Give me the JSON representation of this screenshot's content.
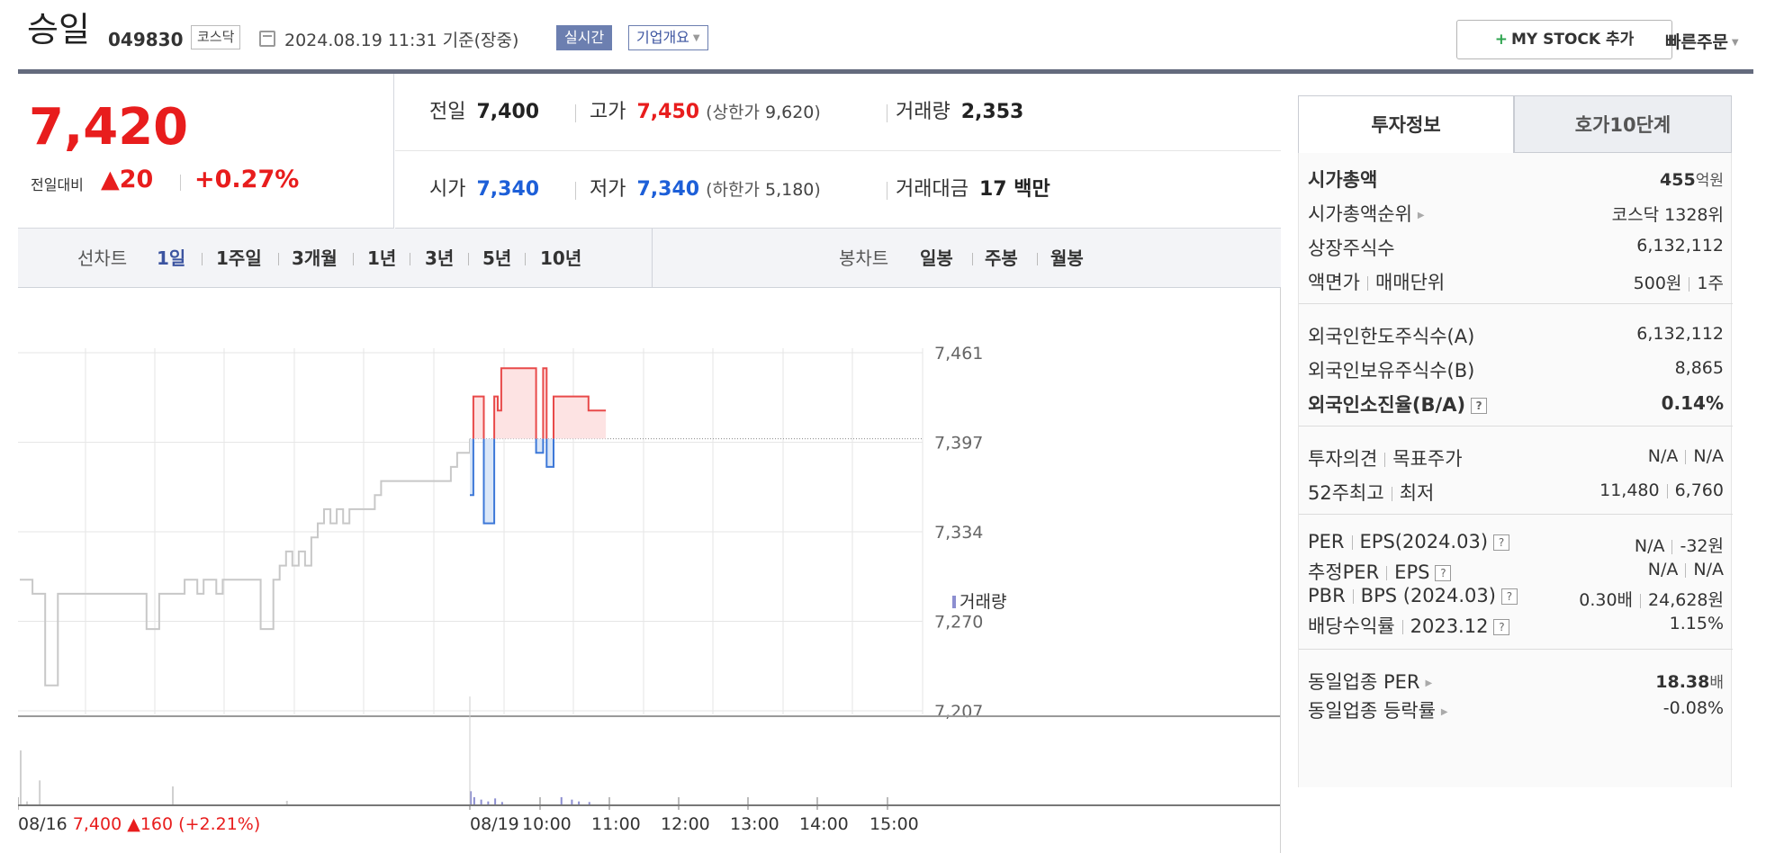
{
  "header": {
    "stock_name": "승일",
    "stock_code": "049830",
    "market": "코스닥",
    "datetime": "2024.08.19 11:31  기준(장중)",
    "realtime_label": "실시간",
    "company_overview_label": "기업개요",
    "my_stock_plus": "+",
    "my_stock_label": "MY STOCK 추가",
    "quick_order_label": "빠른주문"
  },
  "price": {
    "current": "7,420",
    "change_label": "전일대비",
    "change": "▲20",
    "change_pct": "+0.27%"
  },
  "summary": {
    "prev_close_label": "전일",
    "prev_close": "7,400",
    "high_label": "고가",
    "high": "7,450",
    "upper_limit_label": "(상한가",
    "upper_limit": "9,620",
    "upper_close": ")",
    "volume_label": "거래량",
    "volume": "2,353",
    "open_label": "시가",
    "open": "7,340",
    "low_label": "저가",
    "low": "7,340",
    "lower_limit_label": "(하한가",
    "lower_limit": "5,180",
    "lower_close": ")",
    "trade_value_label": "거래대금",
    "trade_value": "17 백만"
  },
  "period_bar": {
    "line_chart_label": "선차트",
    "line_periods": [
      "1일",
      "1주일",
      "3개월",
      "1년",
      "3년",
      "5년",
      "10년"
    ],
    "active_period": "1일",
    "candle_chart_label": "봉차트",
    "candle_periods": [
      "일봉",
      "주봉",
      "월봉"
    ]
  },
  "chart_data": {
    "type": "line",
    "y_ticks": [
      "7,461",
      "7,397",
      "7,334",
      "7,270",
      "7,207"
    ],
    "ylim": [
      7207,
      7461
    ],
    "reference_price": 7400,
    "x_ticks": [
      "08/19",
      "10:00",
      "11:00",
      "12:00",
      "13:00",
      "14:00",
      "15:00"
    ],
    "volume_legend": "거래량",
    "prev_day_label": "08/16",
    "prev_day_close": "7,400",
    "prev_day_change": "▲160",
    "prev_day_change_pct": "(+2.21%)",
    "series": [
      {
        "name": "08/16",
        "values": [
          7300,
          7300,
          7290,
          7290,
          7225,
          7225,
          7290,
          7290,
          7290,
          7290,
          7290,
          7290,
          7290,
          7290,
          7290,
          7290,
          7290,
          7290,
          7290,
          7290,
          7265,
          7265,
          7290,
          7290,
          7290,
          7290,
          7300,
          7300,
          7290,
          7300,
          7300,
          7290,
          7300,
          7300,
          7300,
          7300,
          7300,
          7300,
          7265,
          7265,
          7300,
          7310,
          7320,
          7310,
          7320,
          7310,
          7330,
          7340,
          7350,
          7340,
          7350,
          7340,
          7350,
          7350,
          7350,
          7350,
          7360,
          7370,
          7370,
          7370,
          7370,
          7370,
          7370,
          7370,
          7370,
          7370,
          7370,
          7370,
          7380,
          7390,
          7390,
          7400
        ]
      },
      {
        "name": "08/19",
        "values": [
          7360,
          7430,
          7430,
          7430,
          7340,
          7340,
          7340,
          7430,
          7420,
          7450,
          7450,
          7450,
          7450,
          7450,
          7450,
          7450,
          7450,
          7450,
          7450,
          7390,
          7390,
          7450,
          7380,
          7380,
          7430,
          7430,
          7430,
          7430,
          7430,
          7430,
          7430,
          7430,
          7430,
          7430,
          7420,
          7420,
          7420,
          7420,
          7420
        ]
      }
    ],
    "volume": {
      "08/16": [
        90,
        5,
        0,
        40,
        0,
        0,
        0,
        0,
        0,
        0,
        0,
        0,
        0,
        0,
        0,
        0,
        0,
        0,
        0,
        0,
        0,
        0,
        0,
        0,
        30,
        0,
        0,
        0,
        0,
        0,
        0,
        0,
        0,
        0,
        0,
        0,
        0,
        0,
        0,
        0,
        0,
        0,
        6,
        0,
        0,
        0,
        0,
        0,
        0,
        0,
        0,
        0,
        0,
        0,
        0,
        0,
        0,
        0,
        0,
        0,
        0,
        0,
        0,
        0,
        0,
        0,
        0,
        0,
        0,
        0,
        0,
        6
      ],
      "08/19": [
        22,
        12,
        0,
        8,
        0,
        5,
        0,
        10,
        0,
        4,
        0,
        0,
        0,
        0,
        0,
        0,
        0,
        0,
        0,
        0,
        0,
        0,
        0,
        0,
        0,
        0,
        12,
        0,
        0,
        8,
        0,
        5,
        0,
        0,
        4,
        0,
        0,
        0,
        0
      ]
    }
  },
  "side": {
    "tab_active": "투자정보",
    "tab_other": "호가10단계",
    "g1": {
      "mcap_label": "시가총액",
      "mcap_value": "455",
      "mcap_unit": "억원",
      "mcap_rank_label": "시가총액순위",
      "mcap_rank_value": "코스닥 1328위",
      "shares_label": "상장주식수",
      "shares_value": "6,132,112",
      "face_label": "액면가",
      "lot_label": "매매단위",
      "face_value": "500원",
      "lot_value": "1주"
    },
    "g2": {
      "foreign_limit_label": "외국인한도주식수(A)",
      "foreign_limit_value": "6,132,112",
      "foreign_hold_label": "외국인보유주식수(B)",
      "foreign_hold_value": "8,865",
      "foreign_ratio_label": "외국인소진율(B/A)",
      "foreign_ratio_value": "0.14%"
    },
    "g3": {
      "opinion_label": "투자의견",
      "target_label": "목표주가",
      "opinion_value": "N/A",
      "target_value": "N/A",
      "w52_high_label": "52주최고",
      "w52_low_label": "최저",
      "w52_high_value": "11,480",
      "w52_low_value": "6,760"
    },
    "g4": {
      "per_label": "PER",
      "eps_label": "EPS(2024.03)",
      "per_value": "N/A",
      "eps_value": "-32원",
      "est_per_label": "추정PER",
      "est_eps_label": "EPS",
      "est_per_value": "N/A",
      "est_eps_value": "N/A",
      "pbr_label": "PBR",
      "bps_label": "BPS (2024.03)",
      "pbr_value": "0.30배",
      "bps_value": "24,628원",
      "div_label": "배당수익률",
      "div_date": "2023.12",
      "div_value": "1.15%"
    },
    "g5": {
      "ind_per_label": "동일업종 PER",
      "ind_per_value": "18.38",
      "ind_per_unit": "배",
      "ind_chg_label": "동일업종 등락률",
      "ind_chg_value": "-0.08%"
    },
    "qmark": "?",
    "colors": {
      "up": "#e81d1d",
      "down": "#1d5fd8",
      "accent": "#3c54a0"
    }
  }
}
